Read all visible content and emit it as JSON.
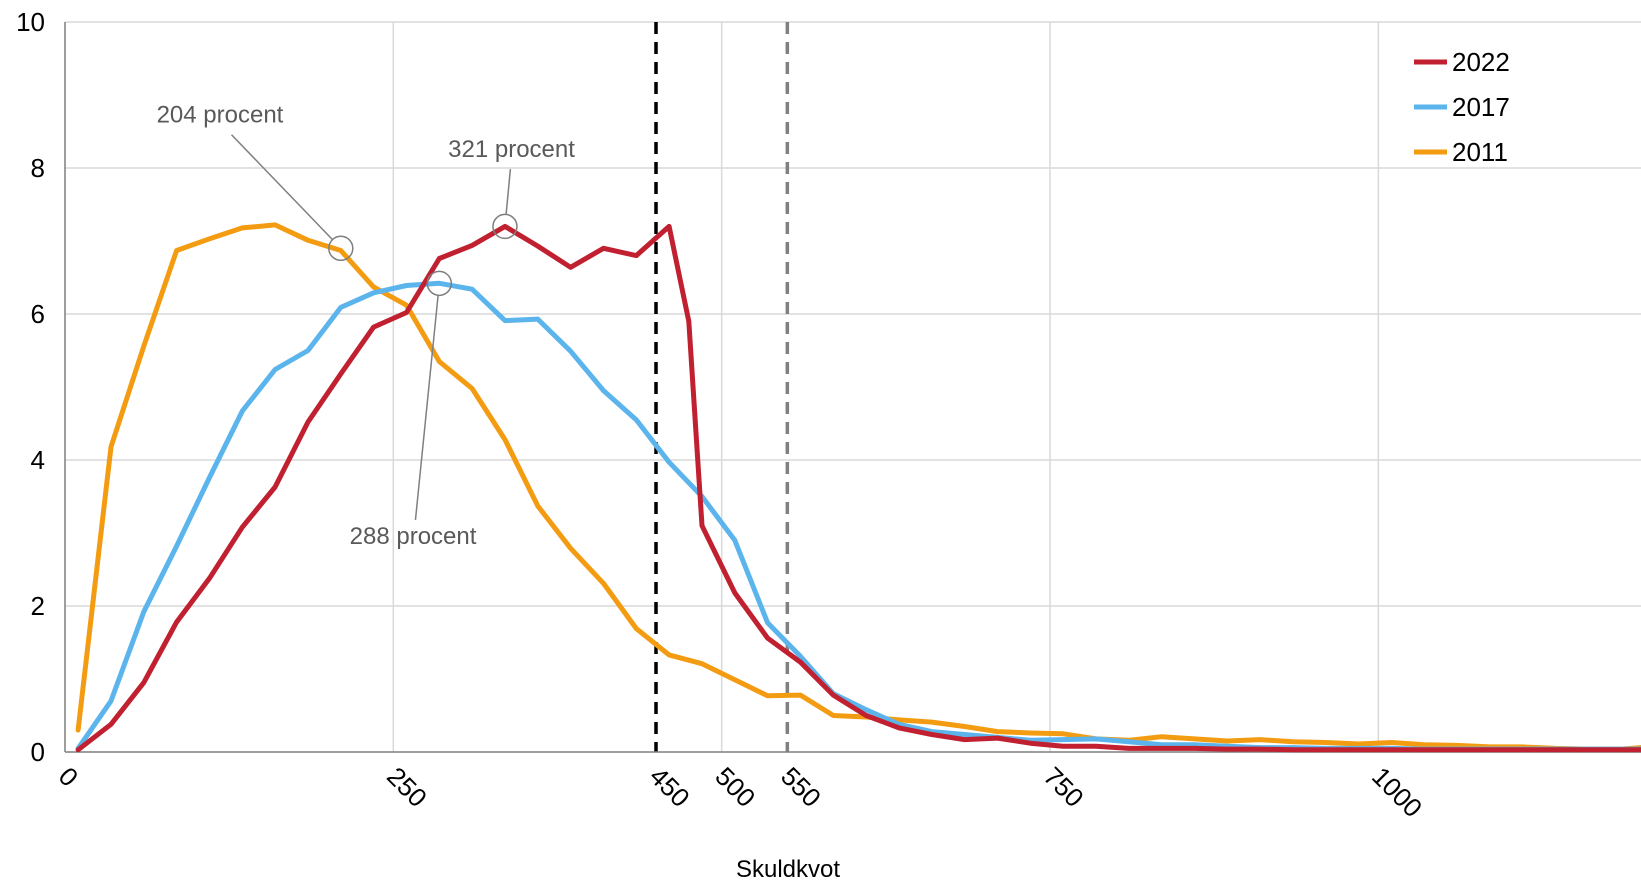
{
  "chart_data": {
    "type": "line",
    "title": "",
    "xlabel": "Skuldkvot",
    "ylabel": "",
    "xlim": [
      0,
      1200
    ],
    "ylim": [
      0,
      10
    ],
    "grid": true,
    "legend_position": "top-right",
    "y_ticks": [
      0,
      2,
      4,
      6,
      8,
      10
    ],
    "x_ticks": [
      0,
      250,
      450,
      500,
      550,
      750,
      1000
    ],
    "x_tick_labels": [
      "0",
      "250",
      "450",
      "500",
      "550",
      "750",
      "1000"
    ],
    "reference_lines": [
      {
        "x": 450,
        "color": "#000000",
        "style": "dashed"
      },
      {
        "x": 550,
        "color": "#808080",
        "style": "dashed"
      }
    ],
    "series": [
      {
        "name": "2022",
        "color": "#C0202F",
        "x": [
          10,
          35,
          60,
          85,
          110,
          135,
          160,
          185,
          210,
          235,
          260,
          285,
          310,
          335,
          360,
          385,
          410,
          435,
          460,
          475,
          485,
          510,
          535,
          560,
          585,
          610,
          635,
          660,
          685,
          710,
          735,
          760,
          785,
          810,
          835,
          860,
          885,
          910,
          935,
          960,
          985,
          1010,
          1035,
          1060,
          1085,
          1110,
          1135,
          1160,
          1185,
          1200
        ],
        "y": [
          0.03,
          0.38,
          0.95,
          1.78,
          2.38,
          3.08,
          3.63,
          4.52,
          5.18,
          5.82,
          6.02,
          6.76,
          6.94,
          7.2,
          6.93,
          6.64,
          6.9,
          6.8,
          7.2,
          5.9,
          3.1,
          2.18,
          1.56,
          1.23,
          0.78,
          0.5,
          0.33,
          0.24,
          0.17,
          0.19,
          0.12,
          0.08,
          0.08,
          0.05,
          0.05,
          0.05,
          0.04,
          0.04,
          0.03,
          0.03,
          0.03,
          0.03,
          0.03,
          0.03,
          0.03,
          0.03,
          0.03,
          0.03,
          0.03,
          0.03
        ]
      },
      {
        "name": "2017",
        "color": "#5BB5EC",
        "x": [
          10,
          35,
          60,
          85,
          110,
          135,
          160,
          185,
          210,
          235,
          260,
          285,
          310,
          335,
          360,
          385,
          410,
          435,
          460,
          485,
          510,
          535,
          560,
          585,
          610,
          635,
          660,
          685,
          710,
          735,
          760,
          785,
          810,
          835,
          860,
          885,
          910,
          935,
          960,
          985,
          1010,
          1035,
          1060,
          1085,
          1110,
          1135,
          1160,
          1185,
          1200
        ],
        "y": [
          0.05,
          0.7,
          1.92,
          2.82,
          3.76,
          4.67,
          5.24,
          5.5,
          6.09,
          6.29,
          6.39,
          6.42,
          6.34,
          5.91,
          5.93,
          5.49,
          4.95,
          4.55,
          3.97,
          3.5,
          2.9,
          1.77,
          1.31,
          0.8,
          0.58,
          0.38,
          0.28,
          0.24,
          0.2,
          0.16,
          0.17,
          0.18,
          0.14,
          0.1,
          0.1,
          0.08,
          0.06,
          0.06,
          0.05,
          0.05,
          0.05,
          0.04,
          0.04,
          0.04,
          0.04,
          0.04,
          0.04,
          0.04,
          0.04
        ]
      },
      {
        "name": "2011",
        "color": "#F39C12",
        "x": [
          10,
          35,
          60,
          85,
          110,
          135,
          160,
          185,
          210,
          235,
          260,
          285,
          310,
          335,
          360,
          385,
          410,
          435,
          460,
          485,
          510,
          535,
          560,
          585,
          610,
          635,
          660,
          685,
          710,
          735,
          760,
          785,
          810,
          835,
          860,
          885,
          910,
          935,
          960,
          985,
          1010,
          1035,
          1060,
          1085,
          1110,
          1135,
          1160,
          1185,
          1200
        ],
        "y": [
          0.3,
          4.18,
          5.56,
          6.87,
          7.03,
          7.18,
          7.22,
          7.01,
          6.87,
          6.37,
          6.12,
          5.35,
          4.98,
          4.28,
          3.37,
          2.79,
          2.31,
          1.69,
          1.33,
          1.21,
          0.99,
          0.77,
          0.78,
          0.5,
          0.48,
          0.44,
          0.41,
          0.35,
          0.28,
          0.26,
          0.25,
          0.18,
          0.16,
          0.21,
          0.18,
          0.15,
          0.17,
          0.14,
          0.13,
          0.11,
          0.13,
          0.1,
          0.09,
          0.07,
          0.07,
          0.05,
          0.04,
          0.04,
          0.06
        ]
      }
    ],
    "annotations": [
      {
        "text": "204 procent",
        "x": 210,
        "y": 6.9,
        "label_x": 118,
        "label_y": 8.62
      },
      {
        "text": "321 procent",
        "x": 335,
        "y": 7.2,
        "label_x": 340,
        "label_y": 8.15
      },
      {
        "text": "288 procent",
        "x": 285,
        "y": 6.42,
        "label_x": 265,
        "label_y": 2.85
      }
    ]
  }
}
